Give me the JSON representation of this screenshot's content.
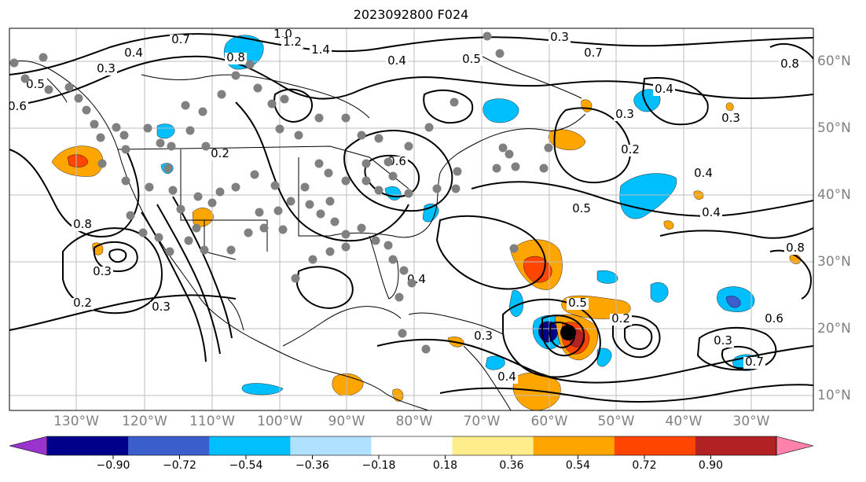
{
  "title": "2023092800 F024",
  "longitude_labels": [
    "130°W",
    "120°W",
    "110°W",
    "100°W",
    "90°W",
    "80°W",
    "70°W",
    "60°W",
    "50°W",
    "40°W",
    "30°W"
  ],
  "latitude_labels": [
    "60°N",
    "50°N",
    "40°N",
    "30°N",
    "20°N",
    "10°N"
  ],
  "colorbar": {
    "colors": [
      "#9a32cd",
      "#00008b",
      "#3a5fcd",
      "#00bfff",
      "#b0e2ff",
      "#ffffff",
      "#ffec8b",
      "#ffa500",
      "#ff4500",
      "#b22222",
      "#ff82ab"
    ],
    "tick_labels": [
      "−0.90",
      "−0.72",
      "−0.54",
      "−0.36",
      "−0.18",
      "0.18",
      "0.36",
      "0.54",
      "0.72",
      "0.90"
    ]
  },
  "contour_labels": [
    "0.3",
    "0.4",
    "0.5",
    "0.6",
    "0.7",
    "0.8",
    "1.0",
    "1.2",
    "1.4",
    "0.2",
    "0.4",
    "0.5",
    "0.3",
    "0.7",
    "0.8",
    "0.4",
    "0.3",
    "0.2",
    "0.3",
    "0.4",
    "0.5",
    "0.4",
    "0.6",
    "0.8",
    "0.3",
    "0.2",
    "0.3",
    "0.4",
    "0.5",
    "0.2",
    "0.3",
    "0.6",
    "0.8",
    "0.7",
    "0.4",
    "0.3"
  ],
  "marker_color": "#808080"
}
